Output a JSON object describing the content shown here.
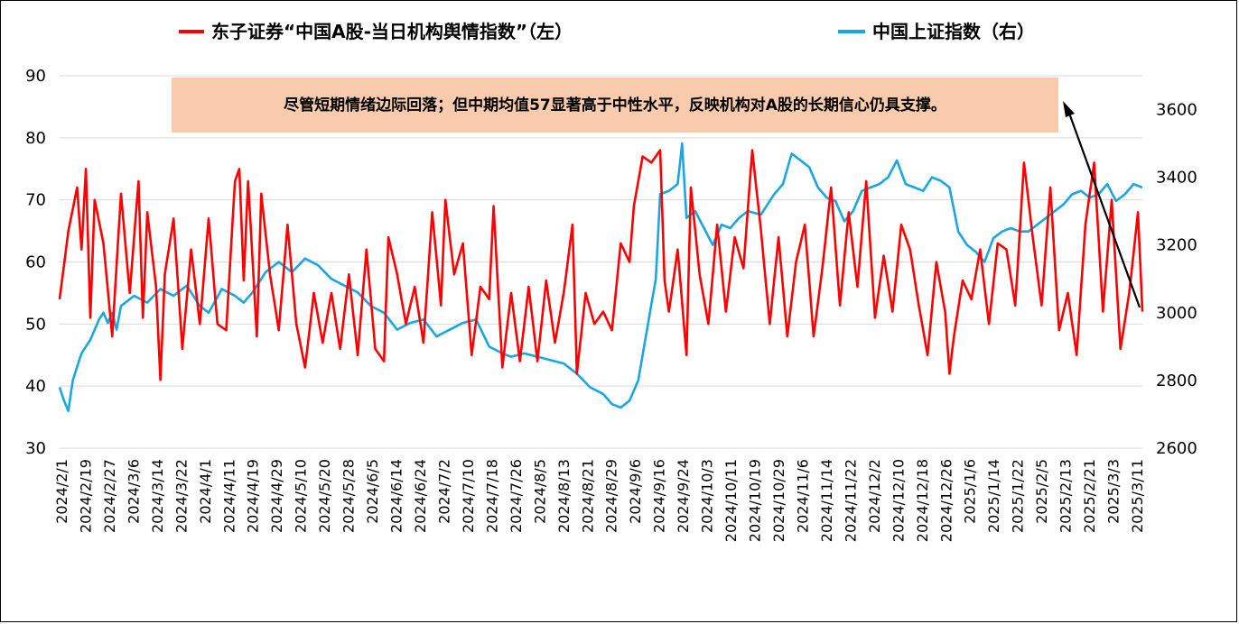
{
  "chart_data": {
    "type": "line",
    "series": [
      {
        "name": "东子证券“中国A股-当日机构舆情指数”（左）",
        "axis": "left",
        "color": "#ff0000",
        "anchors": [
          [
            0,
            54
          ],
          [
            4,
            65
          ],
          [
            8,
            72
          ],
          [
            10,
            62
          ],
          [
            12,
            75
          ],
          [
            14,
            51
          ],
          [
            16,
            70
          ],
          [
            20,
            63
          ],
          [
            24,
            48
          ],
          [
            28,
            71
          ],
          [
            32,
            55
          ],
          [
            36,
            73
          ],
          [
            38,
            51
          ],
          [
            40,
            68
          ],
          [
            44,
            56
          ],
          [
            46,
            41
          ],
          [
            48,
            58
          ],
          [
            52,
            67
          ],
          [
            56,
            46
          ],
          [
            60,
            62
          ],
          [
            64,
            50
          ],
          [
            68,
            67
          ],
          [
            72,
            50
          ],
          [
            76,
            49
          ],
          [
            80,
            73
          ],
          [
            82,
            75
          ],
          [
            84,
            57
          ],
          [
            86,
            73
          ],
          [
            90,
            48
          ],
          [
            92,
            71
          ],
          [
            96,
            58
          ],
          [
            100,
            49
          ],
          [
            104,
            66
          ],
          [
            108,
            50
          ],
          [
            112,
            43
          ],
          [
            116,
            55
          ],
          [
            120,
            47
          ],
          [
            124,
            55
          ],
          [
            128,
            46
          ],
          [
            132,
            58
          ],
          [
            136,
            45
          ],
          [
            140,
            62
          ],
          [
            144,
            46
          ],
          [
            148,
            44
          ],
          [
            150,
            64
          ],
          [
            154,
            58
          ],
          [
            158,
            50
          ],
          [
            162,
            56
          ],
          [
            166,
            47
          ],
          [
            170,
            68
          ],
          [
            174,
            53
          ],
          [
            176,
            70
          ],
          [
            180,
            58
          ],
          [
            184,
            63
          ],
          [
            188,
            45
          ],
          [
            192,
            56
          ],
          [
            196,
            54
          ],
          [
            198,
            69
          ],
          [
            202,
            43
          ],
          [
            206,
            55
          ],
          [
            210,
            44
          ],
          [
            214,
            56
          ],
          [
            218,
            44
          ],
          [
            222,
            57
          ],
          [
            226,
            47
          ],
          [
            230,
            55
          ],
          [
            234,
            66
          ],
          [
            236,
            42
          ],
          [
            240,
            55
          ],
          [
            244,
            50
          ],
          [
            248,
            52
          ],
          [
            252,
            49
          ],
          [
            256,
            63
          ],
          [
            260,
            60
          ],
          [
            262,
            69
          ],
          [
            266,
            77
          ],
          [
            270,
            76
          ],
          [
            274,
            78
          ],
          [
            276,
            57
          ],
          [
            278,
            52
          ],
          [
            282,
            62
          ],
          [
            286,
            45
          ],
          [
            288,
            72
          ],
          [
            292,
            58
          ],
          [
            296,
            50
          ],
          [
            300,
            66
          ],
          [
            304,
            52
          ],
          [
            308,
            64
          ],
          [
            312,
            59
          ],
          [
            316,
            78
          ],
          [
            320,
            65
          ],
          [
            324,
            50
          ],
          [
            328,
            64
          ],
          [
            332,
            48
          ],
          [
            336,
            60
          ],
          [
            340,
            66
          ],
          [
            344,
            48
          ],
          [
            348,
            59
          ],
          [
            352,
            72
          ],
          [
            356,
            53
          ],
          [
            360,
            68
          ],
          [
            364,
            56
          ],
          [
            368,
            73
          ],
          [
            372,
            51
          ],
          [
            376,
            61
          ],
          [
            380,
            52
          ],
          [
            384,
            66
          ],
          [
            388,
            62
          ],
          [
            392,
            53
          ],
          [
            396,
            45
          ],
          [
            400,
            60
          ],
          [
            404,
            52
          ],
          [
            406,
            42
          ],
          [
            408,
            48
          ],
          [
            412,
            57
          ],
          [
            416,
            54
          ],
          [
            420,
            62
          ],
          [
            424,
            50
          ],
          [
            428,
            63
          ],
          [
            432,
            62
          ],
          [
            436,
            53
          ],
          [
            440,
            76
          ],
          [
            444,
            64
          ],
          [
            448,
            53
          ],
          [
            452,
            72
          ],
          [
            456,
            49
          ],
          [
            460,
            55
          ],
          [
            464,
            45
          ],
          [
            468,
            66
          ],
          [
            472,
            76
          ],
          [
            476,
            52
          ],
          [
            480,
            70
          ],
          [
            484,
            46
          ],
          [
            488,
            55
          ],
          [
            492,
            68
          ],
          [
            494,
            52
          ]
        ]
      },
      {
        "name": "中国上证指数（右）",
        "axis": "right",
        "color": "#19a6e4",
        "anchors": [
          [
            0,
            2780
          ],
          [
            2,
            2740
          ],
          [
            4,
            2710
          ],
          [
            6,
            2800
          ],
          [
            10,
            2880
          ],
          [
            14,
            2920
          ],
          [
            18,
            2980
          ],
          [
            20,
            3000
          ],
          [
            22,
            2970
          ],
          [
            24,
            3000
          ],
          [
            26,
            2950
          ],
          [
            28,
            3020
          ],
          [
            34,
            3050
          ],
          [
            40,
            3030
          ],
          [
            46,
            3070
          ],
          [
            52,
            3050
          ],
          [
            58,
            3080
          ],
          [
            64,
            3020
          ],
          [
            68,
            3000
          ],
          [
            74,
            3070
          ],
          [
            80,
            3050
          ],
          [
            84,
            3030
          ],
          [
            88,
            3060
          ],
          [
            94,
            3120
          ],
          [
            100,
            3150
          ],
          [
            106,
            3120
          ],
          [
            112,
            3160
          ],
          [
            118,
            3140
          ],
          [
            124,
            3100
          ],
          [
            130,
            3080
          ],
          [
            136,
            3060
          ],
          [
            142,
            3020
          ],
          [
            148,
            3000
          ],
          [
            154,
            2950
          ],
          [
            160,
            2970
          ],
          [
            166,
            2980
          ],
          [
            172,
            2930
          ],
          [
            178,
            2950
          ],
          [
            184,
            2970
          ],
          [
            190,
            2980
          ],
          [
            196,
            2900
          ],
          [
            202,
            2880
          ],
          [
            206,
            2870
          ],
          [
            212,
            2880
          ],
          [
            218,
            2870
          ],
          [
            224,
            2860
          ],
          [
            230,
            2850
          ],
          [
            236,
            2820
          ],
          [
            242,
            2780
          ],
          [
            248,
            2760
          ],
          [
            252,
            2730
          ],
          [
            256,
            2720
          ],
          [
            260,
            2740
          ],
          [
            264,
            2800
          ],
          [
            268,
            2950
          ],
          [
            272,
            3100
          ],
          [
            274,
            3350
          ],
          [
            278,
            3360
          ],
          [
            282,
            3380
          ],
          [
            284,
            3500
          ],
          [
            286,
            3280
          ],
          [
            290,
            3300
          ],
          [
            294,
            3250
          ],
          [
            298,
            3200
          ],
          [
            302,
            3260
          ],
          [
            306,
            3250
          ],
          [
            310,
            3280
          ],
          [
            314,
            3300
          ],
          [
            320,
            3290
          ],
          [
            326,
            3350
          ],
          [
            330,
            3380
          ],
          [
            334,
            3470
          ],
          [
            338,
            3450
          ],
          [
            342,
            3430
          ],
          [
            346,
            3370
          ],
          [
            350,
            3340
          ],
          [
            354,
            3330
          ],
          [
            358,
            3270
          ],
          [
            362,
            3300
          ],
          [
            366,
            3360
          ],
          [
            370,
            3370
          ],
          [
            374,
            3380
          ],
          [
            378,
            3400
          ],
          [
            382,
            3450
          ],
          [
            386,
            3380
          ],
          [
            390,
            3370
          ],
          [
            394,
            3360
          ],
          [
            398,
            3400
          ],
          [
            402,
            3390
          ],
          [
            406,
            3370
          ],
          [
            410,
            3240
          ],
          [
            414,
            3200
          ],
          [
            418,
            3180
          ],
          [
            422,
            3150
          ],
          [
            426,
            3220
          ],
          [
            430,
            3240
          ],
          [
            434,
            3250
          ],
          [
            438,
            3240
          ],
          [
            442,
            3240
          ],
          [
            446,
            3260
          ],
          [
            450,
            3280
          ],
          [
            454,
            3300
          ],
          [
            458,
            3320
          ],
          [
            462,
            3350
          ],
          [
            466,
            3360
          ],
          [
            470,
            3340
          ],
          [
            474,
            3350
          ],
          [
            478,
            3380
          ],
          [
            482,
            3330
          ],
          [
            486,
            3350
          ],
          [
            490,
            3380
          ],
          [
            494,
            3370
          ]
        ]
      }
    ],
    "n_points": 495,
    "x_tick_labels": [
      "2024/2/1",
      "2024/2/19",
      "2024/2/27",
      "2024/3/6",
      "2024/3/14",
      "2024/3/22",
      "2024/4/1",
      "2024/4/11",
      "2024/4/19",
      "2024/4/29",
      "2024/5/10",
      "2024/5/20",
      "2024/5/28",
      "2024/6/5",
      "2024/6/14",
      "2024/6/24",
      "2024/7/2",
      "2024/7/10",
      "2024/7/18",
      "2024/7/26",
      "2024/8/5",
      "2024/8/13",
      "2024/8/21",
      "2024/8/29",
      "2024/9/6",
      "2024/9/16",
      "2024/9/24",
      "2024/10/3",
      "2024/10/11",
      "2024/10/19",
      "2024/10/29",
      "2024/11/6",
      "2024/11/14",
      "2024/11/22",
      "2024/12/2",
      "2024/12/10",
      "2024/12/18",
      "2024/12/26",
      "2025/1/6",
      "2025/1/14",
      "2025/1/22",
      "2025/2/5",
      "2025/2/13",
      "2025/2/21",
      "2025/3/3",
      "2025/3/11"
    ],
    "y_left": {
      "min": 30,
      "max": 90,
      "ticks": [
        30,
        40,
        50,
        60,
        70,
        80,
        90
      ]
    },
    "y_right": {
      "min": 2600,
      "max": 3700,
      "ticks": [
        2600,
        2800,
        3000,
        3200,
        3400,
        3600
      ]
    },
    "grid": "horizontal",
    "legend_position": "top",
    "annotation": {
      "text": "尽管短期情绪边际回落；但中期均值57显著高于中性水平，反映机构对A股的长期信心仍具支撑。",
      "background": "#f8cbad"
    }
  }
}
